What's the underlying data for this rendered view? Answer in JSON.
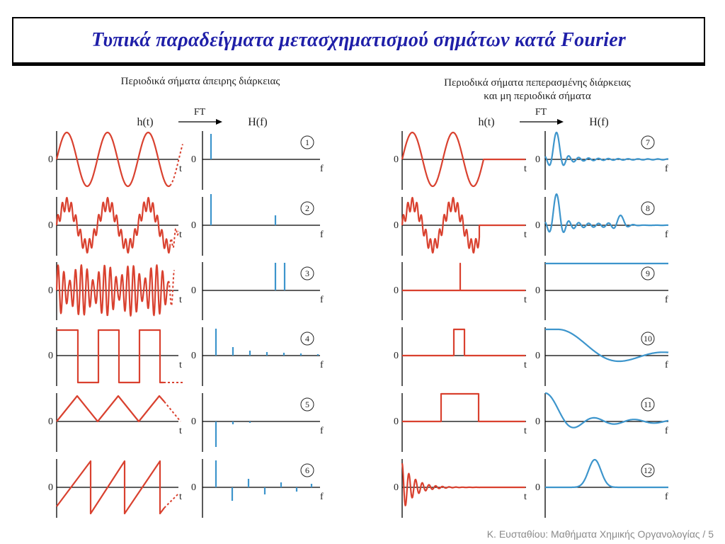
{
  "page": {
    "title": "Τυπικά παραδείγματα μετασχηματισμού σημάτων κατά Fourier",
    "footer": "Κ. Ευσταθίου: Μαθήματα Χημικής Οργανολογίας / 5"
  },
  "left_panel": {
    "heading": "Περιοδικά σήματα άπειρης διάρκειας",
    "time_label": "h(t)",
    "ft_label": "FT",
    "freq_label": "H(f)"
  },
  "right_panel": {
    "heading_line1": "Περιοδικά σήματα πεπερασμένης διάρκειας",
    "heading_line2": "και μη περιοδικά σήματα",
    "time_label": "h(t)",
    "ft_label": "FT",
    "freq_label": "H(f)"
  },
  "axis_labels": {
    "zero": "0",
    "t": "t",
    "f": "f"
  },
  "examples": [
    {
      "number": "1",
      "signal": "sine",
      "spectrum": "single line"
    },
    {
      "number": "2",
      "signal": "sine plus high-frequency component",
      "spectrum": "two lines"
    },
    {
      "number": "3",
      "signal": "beat signal",
      "spectrum": "two close lines"
    },
    {
      "number": "4",
      "signal": "square wave",
      "spectrum": "odd harmonics"
    },
    {
      "number": "5",
      "signal": "triangle wave",
      "spectrum": "odd harmonics, alternating"
    },
    {
      "number": "6",
      "signal": "sawtooth wave",
      "spectrum": "all harmonics, alternating"
    },
    {
      "number": "7",
      "signal": "truncated sine",
      "spectrum": "sinc peak"
    },
    {
      "number": "8",
      "signal": "truncated two-component signal",
      "spectrum": "two sinc peaks"
    },
    {
      "number": "9",
      "signal": "impulse",
      "spectrum": "flat"
    },
    {
      "number": "10",
      "signal": "narrow rectangular pulse",
      "spectrum": "broad sinc"
    },
    {
      "number": "11",
      "signal": "wide rectangular pulse",
      "spectrum": "narrow sinc"
    },
    {
      "number": "12",
      "signal": "damped oscillation",
      "spectrum": "single peak"
    }
  ],
  "colors": {
    "signal": "#d9412f",
    "spectrum": "#3d95cc",
    "title": "#1f1fa8",
    "axis": "#000000"
  }
}
